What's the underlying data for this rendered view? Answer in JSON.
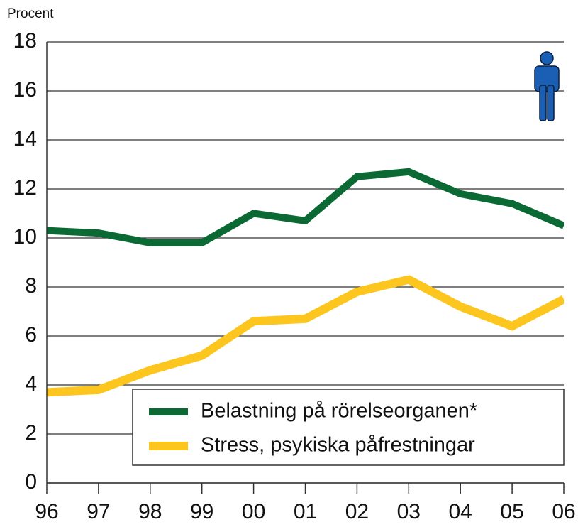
{
  "chart_data": {
    "type": "line",
    "y_label": "Procent",
    "categories": [
      "96",
      "97",
      "98",
      "99",
      "00",
      "01",
      "02",
      "03",
      "04",
      "05",
      "06"
    ],
    "series": [
      {
        "name": "Belastning på rörelseorganen*",
        "color": "#0b6a34",
        "values": [
          10.3,
          10.2,
          9.8,
          9.8,
          11.0,
          10.7,
          12.5,
          12.7,
          11.8,
          11.4,
          10.5
        ]
      },
      {
        "name": "Stress, psykiska påfrestningar",
        "color": "#fdc61f",
        "values": [
          3.7,
          3.8,
          4.6,
          5.2,
          6.6,
          6.7,
          7.8,
          8.3,
          7.2,
          6.4,
          7.5
        ]
      }
    ],
    "ylim": [
      0,
      18
    ],
    "yticks": [
      0,
      2,
      4,
      6,
      8,
      10,
      12,
      14,
      16,
      18
    ],
    "grid": true,
    "legend": "lower right"
  }
}
